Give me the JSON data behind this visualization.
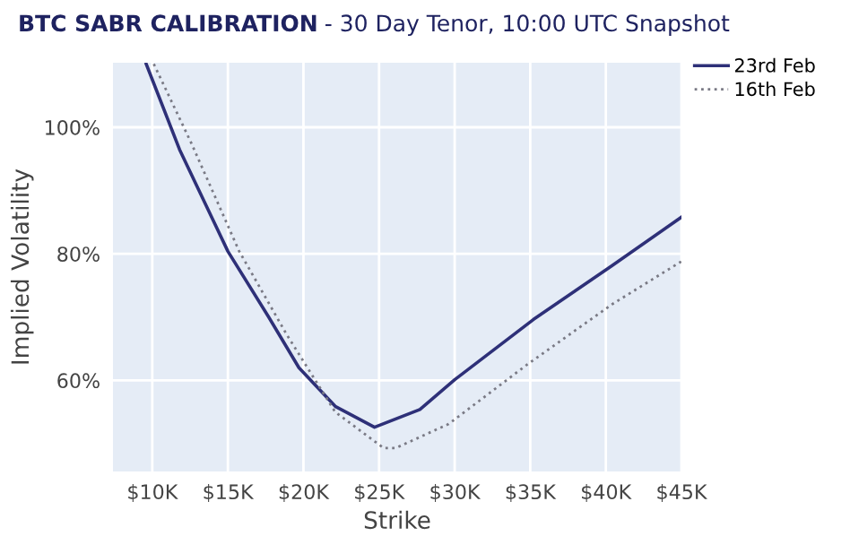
{
  "chart_data": {
    "type": "line",
    "title": "BTC SABR CALIBRATION",
    "subtitle": "- 30 Day Tenor, 10:00 UTC Snapshot",
    "xlabel": "Strike",
    "ylabel": "Implied Volatility",
    "series": [
      {
        "name": "23rd Feb",
        "color": "#2e3078",
        "line_style": "solid",
        "x": [
          9600,
          11800,
          15000,
          17700,
          19700,
          22100,
          24700,
          27700,
          30000,
          35200,
          40400,
          45000
        ],
        "values": [
          110,
          96.5,
          80.4,
          70,
          62,
          55.9,
          52.6,
          55.4,
          60.1,
          69.6,
          78.1,
          85.8
        ]
      },
      {
        "name": "16th Feb",
        "color": "#7a7a85",
        "line_style": "dotted",
        "x": [
          10100,
          12600,
          15750,
          18900,
          22100,
          25300,
          26100,
          29600,
          34800,
          40400,
          45000
        ],
        "values": [
          110,
          97.4,
          80.4,
          67.2,
          55,
          49.3,
          49.3,
          53.1,
          62.5,
          72,
          78.8
        ]
      }
    ],
    "xlim": [
      7400,
      45000
    ],
    "ylim": [
      45.6,
      110.2
    ],
    "xticks": [
      {
        "value": 10000,
        "label": "$10K"
      },
      {
        "value": 15000,
        "label": "$15K"
      },
      {
        "value": 20000,
        "label": "$20K"
      },
      {
        "value": 25000,
        "label": "$25K"
      },
      {
        "value": 30000,
        "label": "$30K"
      },
      {
        "value": 35000,
        "label": "$35K"
      },
      {
        "value": 40000,
        "label": "$40K"
      },
      {
        "value": 45000,
        "label": "$45K"
      }
    ],
    "yticks": [
      {
        "value": 60,
        "label": "60%"
      },
      {
        "value": 80,
        "label": "80%"
      },
      {
        "value": 100,
        "label": "100%"
      }
    ],
    "grid": true,
    "legend": "top right",
    "marker": "none"
  }
}
